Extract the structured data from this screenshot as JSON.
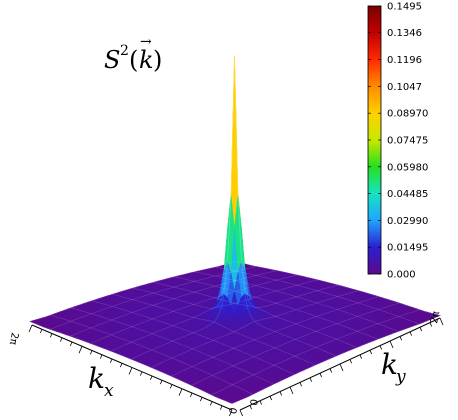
{
  "chart_data": {
    "type": "surface3d",
    "title": "S²(k⃗)",
    "title_base": "S",
    "title_sup": "2",
    "title_arg": "k",
    "xlabel": "k",
    "xlabel_sub": "x",
    "ylabel": "k",
    "ylabel_sub": "y",
    "zlim": [
      0.0,
      0.1495
    ],
    "peak_value": 0.1495,
    "base_level": 0.005,
    "peak_center": [
      0,
      0
    ],
    "colorbar": {
      "ticks": [
        0.1495,
        0.1346,
        0.1196,
        0.1047,
        0.0897,
        0.07475,
        0.0598,
        0.04485,
        0.0299,
        0.01495,
        0.0
      ],
      "tick_labels": [
        "0.1495",
        "0.1346",
        "0.1196",
        "0.1047",
        "0.08970",
        "0.07475",
        "0.05980",
        "0.04485",
        "0.02990",
        "0.01495",
        "0.000"
      ],
      "colors": [
        "#5b0a8e",
        "#2b1fd0",
        "#1fa5ff",
        "#17e3c2",
        "#25e020",
        "#c9e800",
        "#ffd000",
        "#ff8c00",
        "#ff2a00",
        "#c10000",
        "#7a0000"
      ]
    },
    "axis_end_labels": {
      "kx_far": "2π",
      "kx_near": "0",
      "ky_near": "0",
      "ky_far": "2π"
    }
  }
}
